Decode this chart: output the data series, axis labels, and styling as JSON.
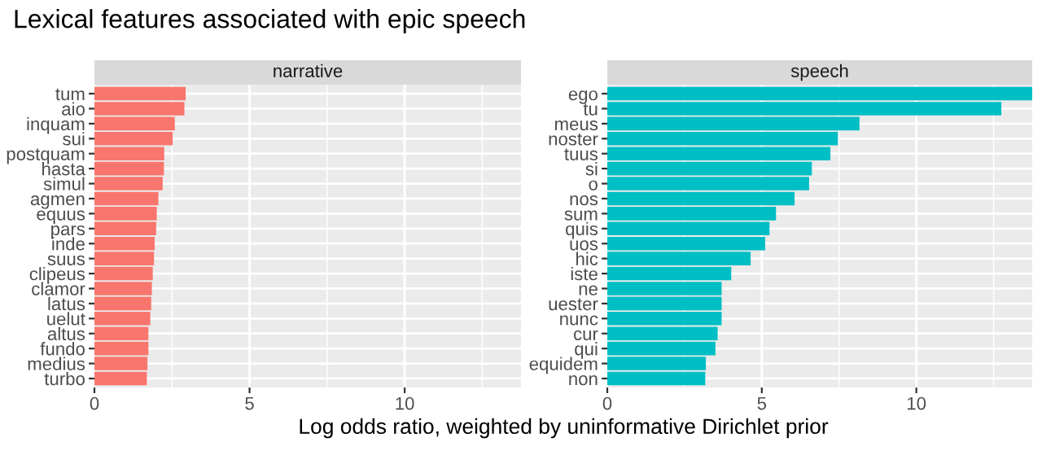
{
  "chart_data": [
    {
      "type": "bar",
      "orientation": "horizontal",
      "title": "Lexical features associated with epic speech",
      "subtitle": "narrative",
      "xlabel": "Log odds ratio, weighted by uninformative Dirichlet prior",
      "categories": [
        "tum",
        "aio",
        "inquam",
        "sui",
        "postquam",
        "hasta",
        "simul",
        "agmen",
        "equus",
        "pars",
        "inde",
        "suus",
        "clipeus",
        "clamor",
        "latus",
        "uelut",
        "altus",
        "fundo",
        "medius",
        "turbo"
      ],
      "values": [
        2.94,
        2.9,
        2.59,
        2.52,
        2.25,
        2.24,
        2.2,
        2.06,
        2.01,
        1.99,
        1.94,
        1.92,
        1.88,
        1.85,
        1.83,
        1.8,
        1.74,
        1.74,
        1.71,
        1.69
      ],
      "color": "#f8766d",
      "xlim": [
        0,
        13.75
      ],
      "xticks": [
        0,
        5,
        10
      ],
      "grid": true,
      "legend": false
    },
    {
      "type": "bar",
      "orientation": "horizontal",
      "subtitle": "speech",
      "categories": [
        "ego",
        "tu",
        "meus",
        "noster",
        "tuus",
        "si",
        "o",
        "nos",
        "sum",
        "quis",
        "uos",
        "hic",
        "iste",
        "ne",
        "uester",
        "nunc",
        "cur",
        "qui",
        "equidem",
        "non"
      ],
      "values": [
        13.75,
        12.75,
        8.16,
        7.46,
        7.22,
        6.62,
        6.53,
        6.06,
        5.46,
        5.25,
        5.11,
        4.64,
        4.01,
        3.7,
        3.7,
        3.7,
        3.57,
        3.5,
        3.19,
        3.17
      ],
      "color": "#00bfc4",
      "xlim": [
        0,
        13.75
      ],
      "xticks": [
        0,
        5,
        10
      ],
      "grid": true,
      "legend": false
    }
  ]
}
